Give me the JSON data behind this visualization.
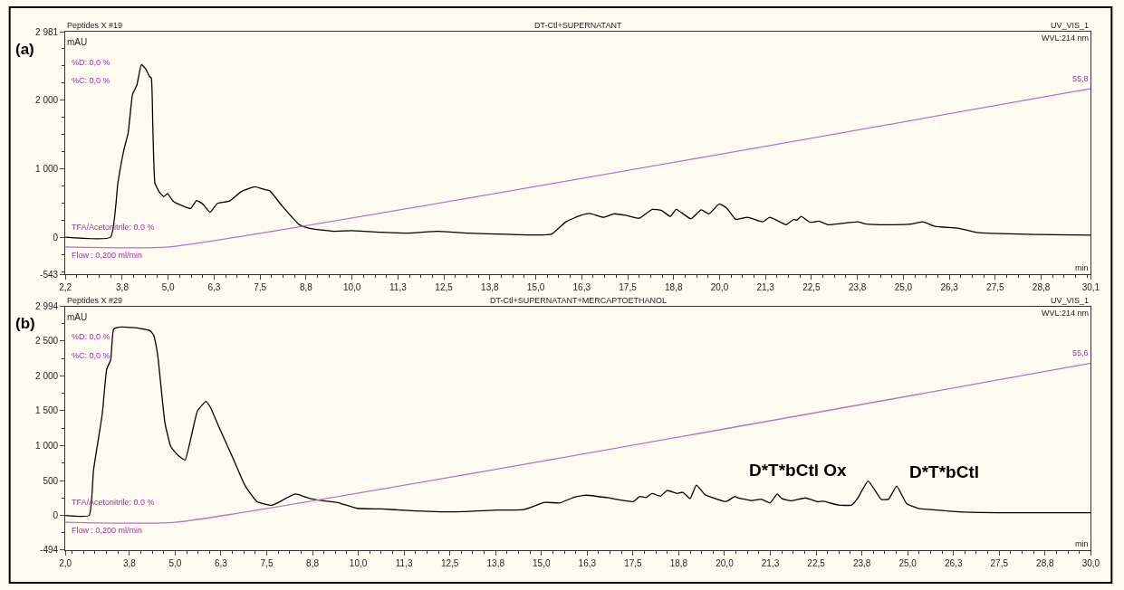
{
  "chart_data": [
    {
      "type": "line",
      "title": "DT-Ctl+SUPERNATANT",
      "xlabel": "min",
      "ylabel": "mAU",
      "xlim": [
        2.2,
        30.1
      ],
      "xticks": [
        {
          "value": 2.2,
          "label": "2,2"
        },
        {
          "value": 3.75,
          "label": "3,8"
        },
        {
          "value": 5.0,
          "label": "5,0"
        },
        {
          "value": 6.25,
          "label": "6,3"
        },
        {
          "value": 7.5,
          "label": "7,5"
        },
        {
          "value": 8.75,
          "label": "8,8"
        },
        {
          "value": 10.0,
          "label": "10,0"
        },
        {
          "value": 11.25,
          "label": "11,3"
        },
        {
          "value": 12.5,
          "label": "12,5"
        },
        {
          "value": 13.75,
          "label": "13,8"
        },
        {
          "value": 15.0,
          "label": "15,0"
        },
        {
          "value": 16.25,
          "label": "16,3"
        },
        {
          "value": 17.5,
          "label": "17,5"
        },
        {
          "value": 18.75,
          "label": "18,8"
        },
        {
          "value": 20.0,
          "label": "20,0"
        },
        {
          "value": 21.25,
          "label": "21,3"
        },
        {
          "value": 22.5,
          "label": "22,5"
        },
        {
          "value": 23.75,
          "label": "23,8"
        },
        {
          "value": 25.0,
          "label": "25,0"
        },
        {
          "value": 26.25,
          "label": "26,3"
        },
        {
          "value": 27.5,
          "label": "27,5"
        },
        {
          "value": 28.75,
          "label": "28,8"
        },
        {
          "value": 30.1,
          "label": "30,1"
        }
      ],
      "ylim": [
        -543,
        2981
      ],
      "yticks": [
        -543,
        0,
        {
          "value": 1000,
          "label": "1 000"
        },
        {
          "value": 2000,
          "label": "2 000"
        },
        {
          "value": 2981,
          "label": "2 981"
        }
      ],
      "series": [
        {
          "color": "#000000",
          "x": [
            2.2,
            3.43,
            3.63,
            3.79,
            3.91,
            4.03,
            4.15,
            4.27,
            4.39,
            4.49,
            4.54,
            4.58,
            4.64,
            4.76,
            4.88,
            4.98,
            5.13,
            5.37,
            5.61,
            5.77,
            5.94,
            6.14,
            6.34,
            6.67,
            6.99,
            7.36,
            7.64,
            7.76,
            8.09,
            8.57,
            8.85,
            9.5,
            9.99,
            10.8,
            11.53,
            12.34,
            13.15,
            14.2,
            15.42,
            15.82,
            16.23,
            16.47,
            16.84,
            17.12,
            17.44,
            17.81,
            18.17,
            18.42,
            18.66,
            18.82,
            19.22,
            19.5,
            19.71,
            19.99,
            20.19,
            20.44,
            20.76,
            21.17,
            21.37,
            21.81,
            22.02,
            22.1,
            22.22,
            22.46,
            22.7,
            22.95,
            23.76,
            24.0,
            24.73,
            25.21,
            25.53,
            25.86,
            26.51,
            26.99,
            27.64,
            28.61,
            30.1
          ],
          "values": [
            0,
            0,
            784,
            1259,
            1517,
            2077,
            2215,
            2508,
            2444,
            2336,
            2314,
            1646,
            784,
            655,
            590,
            634,
            526,
            461,
            418,
            534,
            483,
            362,
            491,
            526,
            664,
            733,
            690,
            677,
            461,
            181,
            129,
            86,
            95,
            73,
            60,
            86,
            60,
            43,
            43,
            224,
            319,
            345,
            289,
            340,
            319,
            276,
            405,
            388,
            302,
            405,
            267,
            397,
            340,
            483,
            427,
            259,
            289,
            224,
            289,
            181,
            259,
            246,
            302,
            216,
            233,
            181,
            224,
            190,
            181,
            190,
            224,
            159,
            129,
            69,
            52,
            39,
            30
          ]
        },
        {
          "color": "#c070c0",
          "x": [
            2.2,
            5.0,
            30.1
          ],
          "values": [
            -142,
            -142,
            2159
          ]
        }
      ],
      "annotations": [
        "(a)",
        "Peptides X #19",
        "UV_VIS_1",
        "WVL:214 nm",
        "%D: 0,0 %",
        "%C: 0,0 %",
        "TFA/Acetonitrile: 0,0 %",
        "Flow : 0,200 ml/min",
        {
          "text": "55,8",
          "x": 30.1,
          "y": 2159
        }
      ]
    },
    {
      "type": "line",
      "title": "DT-Ctl+SUPERNATANT+MERCAPTOETHANOL",
      "xlabel": "min",
      "ylabel": "mAU",
      "xlim": [
        2.0,
        30.0
      ],
      "xticks": [
        {
          "value": 2.0,
          "label": "2,0"
        },
        {
          "value": 3.75,
          "label": "3,8"
        },
        {
          "value": 5.0,
          "label": "5,0"
        },
        {
          "value": 6.25,
          "label": "6,3"
        },
        {
          "value": 7.5,
          "label": "7,5"
        },
        {
          "value": 8.75,
          "label": "8,8"
        },
        {
          "value": 10.0,
          "label": "10,0"
        },
        {
          "value": 11.25,
          "label": "11,3"
        },
        {
          "value": 12.5,
          "label": "12,5"
        },
        {
          "value": 13.75,
          "label": "13,8"
        },
        {
          "value": 15.0,
          "label": "15,0"
        },
        {
          "value": 16.25,
          "label": "16,3"
        },
        {
          "value": 17.5,
          "label": "17,5"
        },
        {
          "value": 18.75,
          "label": "18,8"
        },
        {
          "value": 20.0,
          "label": "20,0"
        },
        {
          "value": 21.25,
          "label": "21,3"
        },
        {
          "value": 22.5,
          "label": "22,5"
        },
        {
          "value": 23.75,
          "label": "23,8"
        },
        {
          "value": 25.0,
          "label": "25,0"
        },
        {
          "value": 26.25,
          "label": "26,3"
        },
        {
          "value": 27.5,
          "label": "27,5"
        },
        {
          "value": 28.75,
          "label": "28,8"
        },
        {
          "value": 30.0,
          "label": "30,0"
        }
      ],
      "ylim": [
        -494,
        2994
      ],
      "yticks": [
        -494,
        0,
        500,
        {
          "value": 1000,
          "label": "1 000"
        },
        {
          "value": 1500,
          "label": "1 500"
        },
        {
          "value": 2000,
          "label": "2 000"
        },
        {
          "value": 2500,
          "label": "2 500"
        },
        {
          "value": 2994,
          "label": "2 994"
        }
      ],
      "series": [
        {
          "color": "#000000",
          "x": [
            2.0,
            2.65,
            2.77,
            3.01,
            3.13,
            3.24,
            3.32,
            3.5,
            3.91,
            4.31,
            4.41,
            4.52,
            4.72,
            4.88,
            5.08,
            5.27,
            5.45,
            5.61,
            5.84,
            5.97,
            6.18,
            6.58,
            6.9,
            7.23,
            7.63,
            7.79,
            8.28,
            8.68,
            9.0,
            9.41,
            9.97,
            10.62,
            11.36,
            12.58,
            13.79,
            14.52,
            15.09,
            15.5,
            15.9,
            16.23,
            16.79,
            17.52,
            17.68,
            17.85,
            18.02,
            18.25,
            18.43,
            18.7,
            18.86,
            19.06,
            19.23,
            19.47,
            20.04,
            20.28,
            20.35,
            20.75,
            21.0,
            21.24,
            21.44,
            21.56,
            21.81,
            22.21,
            22.54,
            22.7,
            23.11,
            23.47,
            23.63,
            23.92,
            24.28,
            24.48,
            24.7,
            24.97,
            25.29,
            25.7,
            26.43,
            27.64,
            30.0
          ],
          "values": [
            0,
            0,
            647,
            1457,
            2095,
            2232,
            2670,
            2700,
            2692,
            2649,
            2585,
            2308,
            1329,
            988,
            860,
            796,
            1158,
            1499,
            1635,
            1542,
            1286,
            818,
            434,
            200,
            145,
            179,
            307,
            243,
            213,
            187,
            102,
            94,
            72,
            51,
            77,
            85,
            187,
            179,
            264,
            290,
            256,
            200,
            273,
            256,
            315,
            277,
            358,
            315,
            332,
            243,
            434,
            298,
            200,
            273,
            256,
            213,
            234,
            179,
            307,
            243,
            209,
            251,
            196,
            204,
            149,
            149,
            243,
            494,
            230,
            234,
            422,
            170,
            102,
            81,
            51,
            38,
            38
          ]
        },
        {
          "color": "#c070c0",
          "x": [
            2.0,
            5.0,
            30.0
          ],
          "values": [
            -98,
            -98,
            2181
          ]
        }
      ],
      "annotations": [
        "(b)",
        "Peptides X #29",
        "UV_VIS_1",
        "WVL:214 nm",
        "%D: 0,0 %",
        "%C: 0,0 %",
        "TFA/Acetonitrile: 0,0 %",
        "Flow : 0,200 ml/min",
        {
          "text": "55,6",
          "x": 30.0,
          "y": 2181
        },
        "D*T*bCtl Ox",
        "D*T*bCtl"
      ]
    }
  ]
}
